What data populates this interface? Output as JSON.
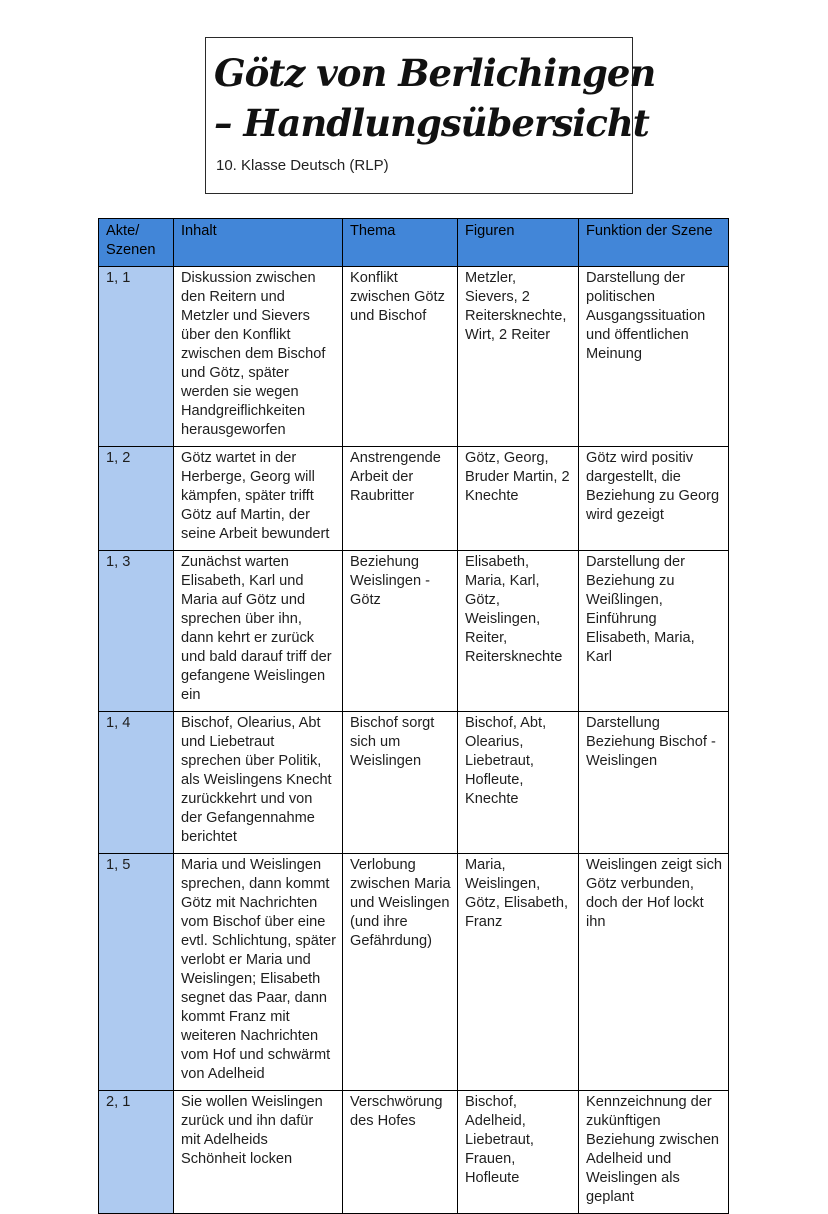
{
  "title_box": {
    "line1": "Götz von Berlichingen",
    "line2": "– Handlungsübersicht",
    "subtitle": "10. Klasse Deutsch (RLP)"
  },
  "colors": {
    "header_bg": "#4286d8",
    "scene_col_bg": "#aecaf0",
    "border": "#000000",
    "text": "#1e1e1e",
    "page_bg": "#ffffff"
  },
  "table": {
    "headers": [
      "Akte/\nSzenen",
      "Inhalt",
      "Thema",
      "Figuren",
      "Funktion der Szene"
    ],
    "rows": [
      {
        "scene": "1, 1",
        "inhalt": "Diskussion zwischen den Reitern und  Metzler und Sievers über den Konflikt zwischen dem Bischof und Götz, später werden sie wegen Handgreiflichkeiten herausgeworfen",
        "thema": "Konflikt zwischen Götz und Bischof",
        "figuren": "Metzler, Sievers, 2 Reitersknechte, Wirt, 2 Reiter",
        "funktion": "Darstellung der politischen Ausgangssituation und öffentlichen Meinung"
      },
      {
        "scene": "1, 2",
        "inhalt": "Götz wartet in der Herberge, Georg will kämpfen, später trifft Götz auf Martin, der seine Arbeit bewundert",
        "thema": "Anstrengende Arbeit der Raubritter",
        "figuren": "Götz, Georg, Bruder Martin, 2 Knechte",
        "funktion": "Götz wird positiv dargestellt, die Beziehung zu Georg wird gezeigt"
      },
      {
        "scene": "1, 3",
        "inhalt": "Zunächst warten Elisabeth, Karl und Maria auf Götz und sprechen über ihn, dann kehrt er zurück und bald darauf triff der gefangene Weislingen ein",
        "thema": "Beziehung Weislingen - Götz",
        "figuren": "Elisabeth, Maria, Karl, Götz, Weislingen, Reiter, Reitersknechte",
        "funktion": "Darstellung der Beziehung zu Weißlingen, Einführung Elisabeth, Maria, Karl"
      },
      {
        "scene": "1, 4",
        "inhalt": "Bischof, Olearius, Abt und Liebetraut sprechen über Politik, als Weislingens Knecht zurückkehrt und von der Gefangennahme berichtet",
        "thema": "Bischof sorgt sich um Weislingen",
        "figuren": "Bischof, Abt, Olearius, Liebetraut, Hofleute, Knechte",
        "funktion": "Darstellung Beziehung Bischof - Weislingen"
      },
      {
        "scene": "1, 5",
        "inhalt": "Maria und Weislingen sprechen, dann kommt Götz mit Nachrichten vom Bischof über eine evtl. Schlichtung, später verlobt er Maria und Weislingen; Elisabeth segnet das Paar, dann kommt Franz mit weiteren Nachrichten vom Hof und schwärmt von Adelheid",
        "thema": "Verlobung zwischen Maria und Weislingen (und ihre Gefährdung)",
        "figuren": "Maria, Weislingen, Götz, Elisabeth, Franz",
        "funktion": "Weislingen zeigt sich Götz verbunden, doch der Hof lockt ihn"
      },
      {
        "scene": "2, 1",
        "inhalt": "Sie wollen Weislingen zurück und ihn dafür mit Adelheids Schönheit locken",
        "thema": "Verschwörung des Hofes",
        "figuren": "Bischof, Adelheid, Liebetraut, Frauen, Hofleute",
        "funktion": "Kennzeichnung der zukünftigen Beziehung zwischen Adelheid und Weislingen als geplant"
      }
    ]
  }
}
